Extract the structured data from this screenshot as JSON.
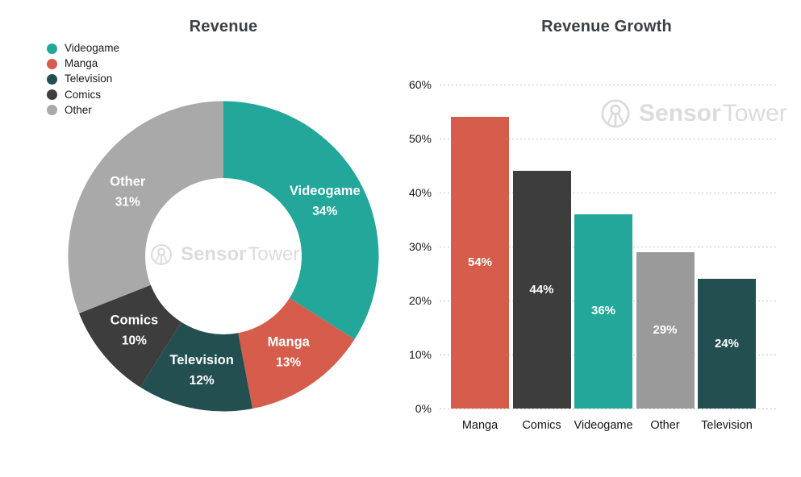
{
  "watermark": {
    "brand_bold": "Sensor",
    "brand_light": "Tower"
  },
  "colors": {
    "videogame": "#23A79A",
    "manga": "#D65C4B",
    "television": "#234F51",
    "comics": "#3D3D3D",
    "other_donut": "#A9A9A9",
    "other_bar": "#9A9A9A",
    "title_text": "#3B4045",
    "axis_text": "#161616",
    "gridline": "#C6C6C6",
    "watermark": "#DCDCDC",
    "label_text_on_slice": "#FFFFFF"
  },
  "chart_data": [
    {
      "type": "pie",
      "subtype": "donut",
      "title": "Revenue",
      "labels": [
        "Videogame",
        "Manga",
        "Television",
        "Comics",
        "Other"
      ],
      "values": [
        34,
        13,
        12,
        10,
        31
      ],
      "value_suffix": "%",
      "slice_label_format": "name + percent",
      "colors": [
        "#23A79A",
        "#D65C4B",
        "#234F51",
        "#3D3D3D",
        "#A9A9A9"
      ],
      "start_angle": "12 o'clock, clockwise",
      "legend_position": "top-left",
      "legend_entries": [
        "Videogame",
        "Manga",
        "Television",
        "Comics",
        "Other"
      ]
    },
    {
      "type": "bar",
      "title": "Revenue Growth",
      "categories": [
        "Manga",
        "Comics",
        "Videogame",
        "Other",
        "Television"
      ],
      "values": [
        54,
        44,
        36,
        29,
        24
      ],
      "bar_labels": [
        "54%",
        "44%",
        "36%",
        "29%",
        "24%"
      ],
      "colors": [
        "#D65C4B",
        "#3D3D3D",
        "#23A79A",
        "#9A9A9A",
        "#234F51"
      ],
      "ylim": [
        0,
        60
      ],
      "ytick_step": 10,
      "ytick_labels": [
        "0%",
        "10%",
        "20%",
        "30%",
        "40%",
        "50%",
        "60%"
      ],
      "grid": "horizontal dashed",
      "legend_position": "none"
    }
  ]
}
